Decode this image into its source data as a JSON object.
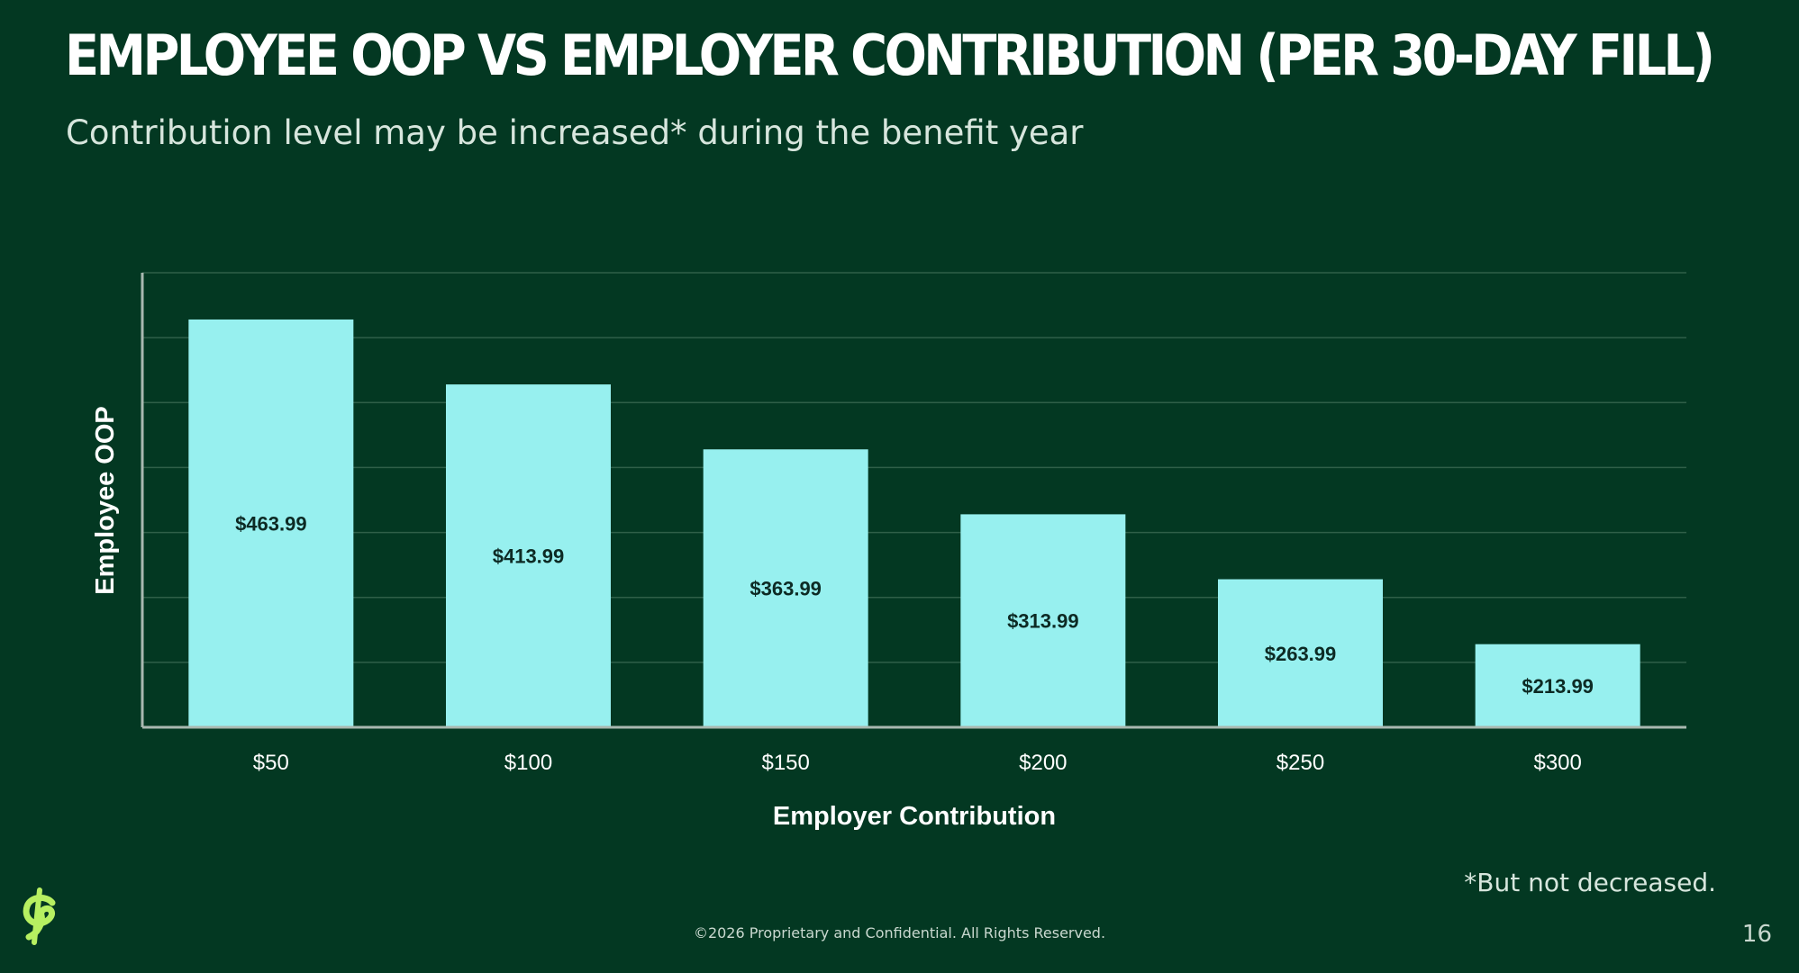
{
  "slide": {
    "title": "EMPLOYEE OOP VS EMPLOYER CONTRIBUTION (PER 30-DAY FILL)",
    "subtitle": "Contribution level may be increased* during the benefit year",
    "footnote": "*But not decreased.",
    "footer": "©2026 Proprietary and Confidential. All Rights Reserved.",
    "page_number": "16",
    "logo_icon": "cent-sign-logo-icon"
  },
  "colors": {
    "background": "#033822",
    "bar": "#97f0ef",
    "grid": "#2f5f48",
    "axis": "#a9b8b0",
    "logo": "#b7f061"
  },
  "chart_data": {
    "type": "bar",
    "categories": [
      "$50",
      "$100",
      "$150",
      "$200",
      "$250",
      "$300"
    ],
    "values": [
      463.99,
      413.99,
      363.99,
      313.99,
      263.99,
      213.99
    ],
    "data_labels": [
      "$463.99",
      "$413.99",
      "$363.99",
      "$313.99",
      "$263.99",
      "$213.99"
    ],
    "xlabel": "Employer Contribution",
    "ylabel": "Employee OOP",
    "ylim": [
      150,
      500
    ],
    "grid": true,
    "legend": "none"
  }
}
